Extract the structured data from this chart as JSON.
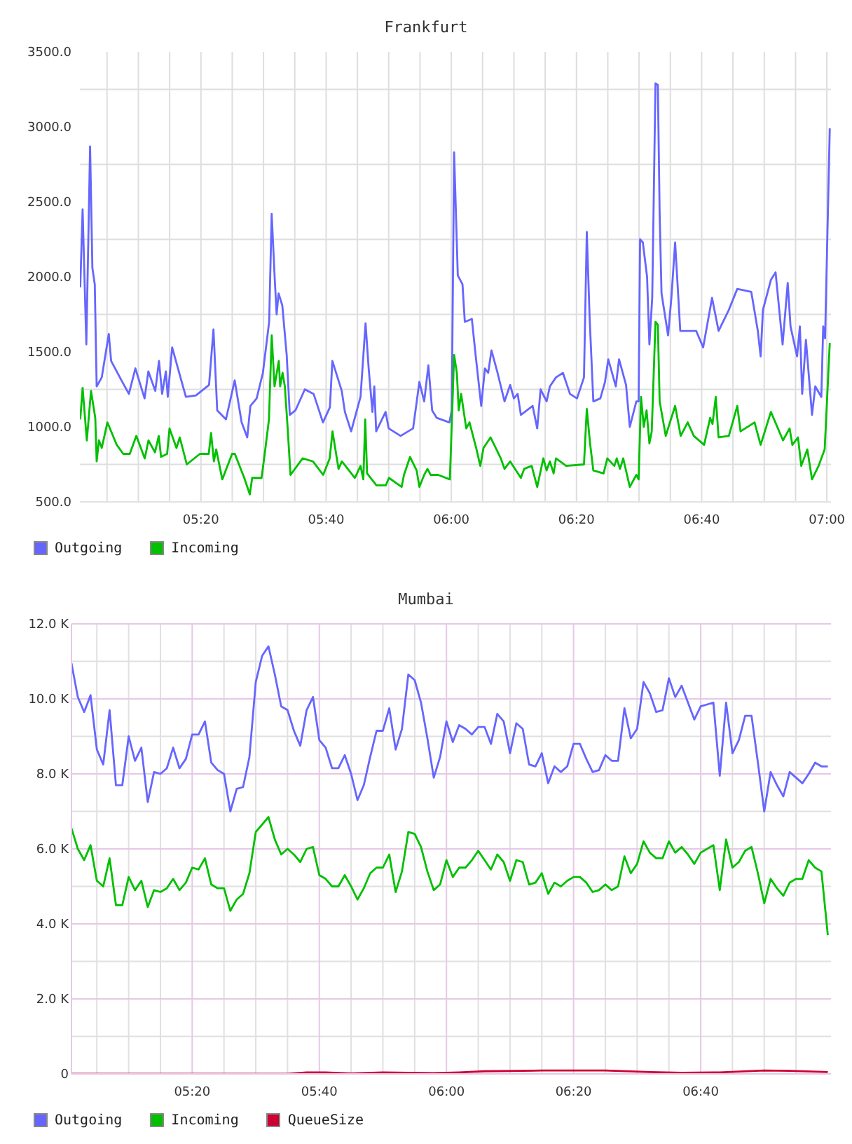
{
  "chart_data": [
    {
      "type": "line",
      "title": "Frankfurt",
      "grid": true,
      "legend": "bottom left",
      "marker": "none",
      "xlim": [
        5.011,
        7.011
      ],
      "xticks": [
        {
          "value": 5.0833,
          "label": null
        },
        {
          "value": 5.1667,
          "label": null
        },
        {
          "value": 5.25,
          "label": null
        },
        {
          "value": 5.3333,
          "label": "05:20"
        },
        {
          "value": 5.4167,
          "label": null
        },
        {
          "value": 5.5,
          "label": null
        },
        {
          "value": 5.5833,
          "label": null
        },
        {
          "value": 5.6667,
          "label": "05:40"
        },
        {
          "value": 5.75,
          "label": null
        },
        {
          "value": 5.8333,
          "label": null
        },
        {
          "value": 5.9167,
          "label": null
        },
        {
          "value": 6,
          "label": "06:00"
        },
        {
          "value": 6.0833,
          "label": null
        },
        {
          "value": 6.1667,
          "label": null
        },
        {
          "value": 6.25,
          "label": null
        },
        {
          "value": 6.3333,
          "label": "06:20"
        },
        {
          "value": 6.4167,
          "label": null
        },
        {
          "value": 6.5,
          "label": null
        },
        {
          "value": 6.5833,
          "label": null
        },
        {
          "value": 6.6667,
          "label": "06:40"
        },
        {
          "value": 6.75,
          "label": null
        },
        {
          "value": 6.8333,
          "label": null
        },
        {
          "value": 6.9167,
          "label": null
        },
        {
          "value": 7,
          "label": "07:00"
        }
      ],
      "ylim": [
        500,
        3500
      ],
      "yticks": [
        {
          "value": 500,
          "label": "500.0"
        },
        {
          "value": 750,
          "label": null
        },
        {
          "value": 1000,
          "label": "1000.0"
        },
        {
          "value": 1250,
          "label": null
        },
        {
          "value": 1500,
          "label": "1500.0"
        },
        {
          "value": 1750,
          "label": null
        },
        {
          "value": 2000,
          "label": "2000.0"
        },
        {
          "value": 2250,
          "label": null
        },
        {
          "value": 2500,
          "label": "2500.0"
        },
        {
          "value": 2750,
          "label": null
        },
        {
          "value": 3000,
          "label": "3000.0"
        },
        {
          "value": 3250,
          "label": null
        },
        {
          "value": 3500,
          "label": "3500.0"
        }
      ],
      "series": [
        {
          "name": "Outgoing",
          "color": "#6666ff",
          "x": [
            5.012,
            5.0183,
            5.0282,
            5.0382,
            5.0443,
            5.0507,
            5.0557,
            5.0693,
            5.088,
            5.0942,
            5.124,
            5.1415,
            5.1588,
            5.1833,
            5.1933,
            5.2117,
            5.2217,
            5.23,
            5.24,
            5.245,
            5.2567,
            5.2933,
            5.32,
            5.355,
            5.3667,
            5.3767,
            5.4,
            5.4233,
            5.4417,
            5.4567,
            5.465,
            5.4817,
            5.4983,
            5.515,
            5.5217,
            5.53,
            5.535,
            5.54,
            5.55,
            5.5617,
            5.57,
            5.585,
            5.61,
            5.6333,
            5.6583,
            5.6767,
            5.6833,
            5.7083,
            5.7167,
            5.7333,
            5.7583,
            5.7717,
            5.78,
            5.79,
            5.795,
            5.8,
            5.825,
            5.8333,
            5.865,
            5.8983,
            5.915,
            5.9278,
            5.939,
            5.949,
            5.9613,
            5.995,
            6.0012,
            6.0075,
            6.0173,
            6.0298,
            6.036,
            6.0547,
            6.0647,
            6.0797,
            6.0895,
            6.0982,
            6.107,
            6.1232,
            6.1418,
            6.1567,
            6.1667,
            6.1767,
            6.1853,
            6.2165,
            6.2288,
            6.2377,
            6.2538,
            6.2625,
            6.2787,
            6.2973,
            6.316,
            6.3347,
            6.3533,
            6.3608,
            6.3683,
            6.3782,
            6.3968,
            6.4093,
            6.418,
            6.438,
            6.4467,
            6.4653,
            6.4753,
            6.4927,
            6.4988,
            6.5027,
            6.51,
            6.5213,
            6.5275,
            6.535,
            6.5437,
            6.55,
            6.5548,
            6.5598,
            6.5773,
            6.586,
            6.596,
            6.6097,
            6.652,
            6.6707,
            6.6943,
            6.7117,
            6.739,
            6.7615,
            6.7988,
            6.8162,
            6.8237,
            6.8298,
            6.851,
            6.8635,
            6.8822,
            6.8958,
            6.9033,
            6.9207,
            6.9282,
            6.9343,
            6.9443,
            6.9605,
            6.9692,
            6.9853,
            6.9903,
            6.9953,
            7.0078
          ],
          "values": [
            1930,
            2450,
            1550,
            2870,
            2060,
            1950,
            1270,
            1330,
            1620,
            1440,
            1300,
            1220,
            1390,
            1190,
            1370,
            1240,
            1440,
            1220,
            1370,
            1200,
            1530,
            1200,
            1210,
            1280,
            1650,
            1110,
            1050,
            1310,
            1030,
            930,
            1140,
            1190,
            1360,
            1700,
            2420,
            1980,
            1750,
            1890,
            1810,
            1480,
            1080,
            1110,
            1250,
            1220,
            1030,
            1130,
            1440,
            1240,
            1100,
            970,
            1200,
            1690,
            1390,
            1100,
            1270,
            970,
            1100,
            990,
            940,
            990,
            1300,
            1170,
            1410,
            1110,
            1060,
            1030,
            1110,
            2830,
            2010,
            1950,
            1700,
            1720,
            1480,
            1140,
            1390,
            1360,
            1510,
            1360,
            1170,
            1280,
            1190,
            1220,
            1080,
            1140,
            990,
            1250,
            1170,
            1270,
            1330,
            1360,
            1220,
            1190,
            1330,
            2300,
            1730,
            1170,
            1190,
            1300,
            1450,
            1270,
            1450,
            1280,
            1000,
            1170,
            1170,
            2250,
            2230,
            2000,
            1550,
            1860,
            3290,
            3280,
            2420,
            1890,
            1610,
            1860,
            2230,
            1640,
            1640,
            1530,
            1860,
            1640,
            1780,
            1920,
            1900,
            1640,
            1470,
            1780,
            1980,
            2030,
            1550,
            1960,
            1670,
            1470,
            1670,
            1220,
            1580,
            1080,
            1270,
            1200,
            1670,
            1590,
            2990
          ]
        },
        {
          "name": "Incoming",
          "color": "#00c000",
          "x": [
            5.012,
            5.0183,
            5.0295,
            5.0407,
            5.052,
            5.0557,
            5.0618,
            5.0693,
            5.0843,
            5.1092,
            5.1265,
            5.1438,
            5.1613,
            5.1837,
            5.1937,
            5.211,
            5.221,
            5.2272,
            5.2433,
            5.2497,
            5.2682,
            5.277,
            5.2957,
            5.3305,
            5.3542,
            5.3603,
            5.3678,
            5.374,
            5.3902,
            5.4163,
            5.4237,
            5.4487,
            5.4635,
            5.4698,
            5.4947,
            5.5022,
            5.5145,
            5.5218,
            5.5293,
            5.5407,
            5.5443,
            5.5507,
            5.5568,
            5.5643,
            5.5718,
            5.6042,
            5.6315,
            5.6588,
            5.6762,
            5.6837,
            5.6998,
            5.7085,
            5.7433,
            5.7583,
            5.7658,
            5.7708,
            5.7758,
            5.8007,
            5.8255,
            5.834,
            5.8678,
            5.874,
            5.8902,
            5.9077,
            5.915,
            5.9278,
            5.9365,
            5.9452,
            5.9652,
            5.9962,
            6.0075,
            6.0148,
            6.0198,
            6.0262,
            6.0398,
            6.0485,
            6.0672,
            6.0772,
            6.0858,
            6.1045,
            6.1318,
            6.1418,
            6.1567,
            6.1853,
            6.194,
            6.214,
            6.2288,
            6.245,
            6.2538,
            6.2625,
            6.2725,
            6.2787,
            6.306,
            6.3533,
            6.3608,
            6.3695,
            6.3782,
            6.4055,
            6.4155,
            6.4342,
            6.4405,
            6.4492,
            6.4578,
            6.4753,
            6.4927,
            6.4988,
            6.5052,
            6.5125,
            6.52,
            6.5275,
            6.5337,
            6.5437,
            6.55,
            6.5548,
            6.571,
            6.596,
            6.6108,
            6.6295,
            6.6457,
            6.6732,
            6.6893,
            6.6955,
            6.7042,
            6.7117,
            6.739,
            6.7615,
            6.7702,
            6.8075,
            6.8237,
            6.851,
            6.8833,
            6.9008,
            6.9082,
            6.9232,
            6.9318,
            6.948,
            6.9605,
            6.978,
            6.9942,
            7.0078
          ],
          "values": [
            1050,
            1260,
            910,
            1240,
            1060,
            770,
            910,
            860,
            1030,
            880,
            820,
            820,
            940,
            790,
            910,
            830,
            940,
            800,
            820,
            990,
            860,
            930,
            750,
            820,
            820,
            960,
            770,
            850,
            650,
            820,
            820,
            660,
            550,
            660,
            660,
            800,
            1050,
            1610,
            1270,
            1440,
            1270,
            1360,
            1270,
            990,
            680,
            790,
            770,
            680,
            790,
            970,
            720,
            770,
            660,
            740,
            650,
            1050,
            690,
            610,
            610,
            660,
            600,
            680,
            800,
            710,
            600,
            680,
            720,
            680,
            680,
            650,
            1480,
            1360,
            1110,
            1220,
            990,
            1030,
            850,
            740,
            860,
            930,
            790,
            720,
            770,
            660,
            720,
            740,
            600,
            790,
            710,
            770,
            690,
            790,
            740,
            750,
            1120,
            890,
            710,
            690,
            790,
            740,
            790,
            720,
            790,
            600,
            680,
            650,
            1200,
            1000,
            1110,
            890,
            970,
            1700,
            1680,
            1170,
            940,
            1140,
            940,
            1030,
            940,
            880,
            1060,
            1020,
            1200,
            930,
            940,
            1140,
            970,
            1030,
            880,
            1100,
            910,
            990,
            880,
            930,
            740,
            850,
            650,
            740,
            850,
            1560
          ]
        }
      ]
    },
    {
      "type": "line",
      "title": "Mumbai",
      "grid": true,
      "legend": "bottom left",
      "marker": "none",
      "xlim": [
        5.0167,
        7.0083
      ],
      "xticks": [
        {
          "value": 5.0833,
          "label": null
        },
        {
          "value": 5.1667,
          "label": null
        },
        {
          "value": 5.25,
          "label": null
        },
        {
          "value": 5.3333,
          "label": "05:20"
        },
        {
          "value": 5.4167,
          "label": null
        },
        {
          "value": 5.5,
          "label": null
        },
        {
          "value": 5.5833,
          "label": null
        },
        {
          "value": 5.6667,
          "label": "05:40"
        },
        {
          "value": 5.75,
          "label": null
        },
        {
          "value": 5.8333,
          "label": null
        },
        {
          "value": 5.9167,
          "label": null
        },
        {
          "value": 6,
          "label": "06:00"
        },
        {
          "value": 6.0833,
          "label": null
        },
        {
          "value": 6.1667,
          "label": null
        },
        {
          "value": 6.25,
          "label": null
        },
        {
          "value": 6.3333,
          "label": "06:20"
        },
        {
          "value": 6.4167,
          "label": null
        },
        {
          "value": 6.5,
          "label": null
        },
        {
          "value": 6.5833,
          "label": null
        },
        {
          "value": 6.6667,
          "label": "06:40"
        },
        {
          "value": 6.75,
          "label": null
        },
        {
          "value": 6.8333,
          "label": null
        },
        {
          "value": 6.9167,
          "label": null
        }
      ],
      "ylim": [
        0,
        12000
      ],
      "yticks": [
        0,
        {
          "value": 1000,
          "label": null
        },
        {
          "value": 2000,
          "label": "2.0 K"
        },
        {
          "value": 3000,
          "label": null
        },
        {
          "value": 4000,
          "label": "4.0 K"
        },
        {
          "value": 5000,
          "label": null
        },
        {
          "value": 6000,
          "label": "6.0 K"
        },
        {
          "value": 7000,
          "label": null
        },
        {
          "value": 8000,
          "label": "8.0 K"
        },
        {
          "value": 9000,
          "label": null
        },
        {
          "value": 10000,
          "label": "10.0 K"
        },
        {
          "value": 11000,
          "label": null
        },
        {
          "value": 12000,
          "label": "12.0 K"
        }
      ],
      "x": [
        5.0167,
        5.0333,
        5.05,
        5.0667,
        5.0833,
        5.1,
        5.1167,
        5.1333,
        5.15,
        5.1667,
        5.1833,
        5.2,
        5.2167,
        5.2333,
        5.25,
        5.2667,
        5.2833,
        5.3,
        5.3167,
        5.3333,
        5.35,
        5.3667,
        5.3833,
        5.4,
        5.4167,
        5.4333,
        5.45,
        5.4667,
        5.4833,
        5.5,
        5.5167,
        5.5333,
        5.55,
        5.5667,
        5.5833,
        5.6,
        5.6167,
        5.6333,
        5.65,
        5.6667,
        5.6833,
        5.7,
        5.7167,
        5.7333,
        5.75,
        5.7667,
        5.7833,
        5.8,
        5.8167,
        5.8333,
        5.85,
        5.8667,
        5.8833,
        5.9,
        5.9167,
        5.9333,
        5.95,
        5.9667,
        5.9833,
        6,
        6.0167,
        6.0333,
        6.05,
        6.0667,
        6.0833,
        6.1,
        6.1167,
        6.1333,
        6.15,
        6.1667,
        6.1833,
        6.2,
        6.2167,
        6.2333,
        6.25,
        6.2667,
        6.2833,
        6.3,
        6.3167,
        6.3333,
        6.35,
        6.3667,
        6.3833,
        6.4,
        6.4167,
        6.4333,
        6.45,
        6.4667,
        6.4833,
        6.5,
        6.5167,
        6.5333,
        6.55,
        6.5667,
        6.5833,
        6.6,
        6.6167,
        6.6333,
        6.65,
        6.6667,
        6.6833,
        6.7,
        6.7167,
        6.7333,
        6.75,
        6.7667,
        6.7833,
        6.8,
        6.8167,
        6.8333,
        6.85,
        6.8667,
        6.8833,
        6.9,
        6.9167,
        6.9333,
        6.95,
        6.9667,
        6.9833,
        7
      ],
      "series": [
        {
          "name": "Outgoing",
          "color": "#6666ff",
          "values": [
            10950,
            10050,
            9650,
            10100,
            8650,
            8250,
            9700,
            7700,
            7700,
            9000,
            8350,
            8700,
            7250,
            8050,
            8000,
            8150,
            8700,
            8150,
            8400,
            9050,
            9050,
            9400,
            8300,
            8100,
            8000,
            7000,
            7600,
            7650,
            8450,
            10450,
            11150,
            11400,
            10650,
            9800,
            9700,
            9150,
            8750,
            9700,
            10050,
            8900,
            8700,
            8150,
            8150,
            8500,
            8000,
            7300,
            7700,
            8450,
            9150,
            9150,
            9750,
            8650,
            9200,
            10650,
            10500,
            9900,
            8950,
            7900,
            8450,
            9400,
            8850,
            9300,
            9200,
            9050,
            9250,
            9250,
            8800,
            9600,
            9400,
            8550,
            9350,
            9200,
            8250,
            8200,
            8550,
            7750,
            8200,
            8050,
            8200,
            8800,
            8800,
            8400,
            8050,
            8100,
            8500,
            8350,
            8350,
            9750,
            8950,
            9200,
            10450,
            10150,
            9650,
            9700,
            10550,
            10050,
            10350,
            9900,
            9450,
            9800,
            9850,
            9900,
            7950,
            9900,
            8550,
            8900,
            9550,
            9550,
            8300,
            7000,
            8050,
            7700,
            7400,
            8050,
            7900,
            7750,
            8000,
            8300,
            8200,
            8200
          ]
        },
        {
          "name": "Incoming",
          "color": "#00c000",
          "values": [
            6550,
            6000,
            5700,
            6100,
            5150,
            5000,
            5750,
            4500,
            4500,
            5250,
            4900,
            5150,
            4450,
            4900,
            4850,
            4950,
            5200,
            4900,
            5100,
            5500,
            5450,
            5750,
            5050,
            4950,
            4950,
            4350,
            4650,
            4800,
            5350,
            6450,
            6650,
            6850,
            6250,
            5850,
            6000,
            5850,
            5650,
            6000,
            6050,
            5300,
            5200,
            5000,
            5000,
            5300,
            5000,
            4650,
            4950,
            5350,
            5500,
            5500,
            5850,
            4850,
            5400,
            6450,
            6400,
            6050,
            5400,
            4900,
            5050,
            5700,
            5250,
            5500,
            5500,
            5700,
            5950,
            5700,
            5450,
            5850,
            5650,
            5150,
            5700,
            5650,
            5050,
            5100,
            5350,
            4800,
            5100,
            5000,
            5150,
            5250,
            5250,
            5100,
            4850,
            4900,
            5050,
            4900,
            5000,
            5800,
            5350,
            5600,
            6200,
            5900,
            5750,
            5750,
            6200,
            5900,
            6050,
            5850,
            5600,
            5900,
            6000,
            6100,
            4900,
            6250,
            5500,
            5650,
            5950,
            6050,
            5350,
            4550,
            5200,
            4950,
            4750,
            5100,
            5200,
            5200,
            5700,
            5500,
            5400,
            3700
          ]
        },
        {
          "name": "QueueSize",
          "color": "#cc0033",
          "x": [
            5.0167,
            5.5833,
            5.6333,
            5.6833,
            5.75,
            5.8333,
            5.9,
            5.9667,
            6.0333,
            6.1,
            6.25,
            6.4167,
            6.5333,
            6.6167,
            6.7167,
            6.8333,
            6.9,
            7
          ],
          "values": [
            0,
            0,
            40,
            40,
            10,
            40,
            30,
            20,
            40,
            70,
            90,
            90,
            50,
            30,
            40,
            90,
            80,
            50
          ]
        }
      ]
    }
  ]
}
